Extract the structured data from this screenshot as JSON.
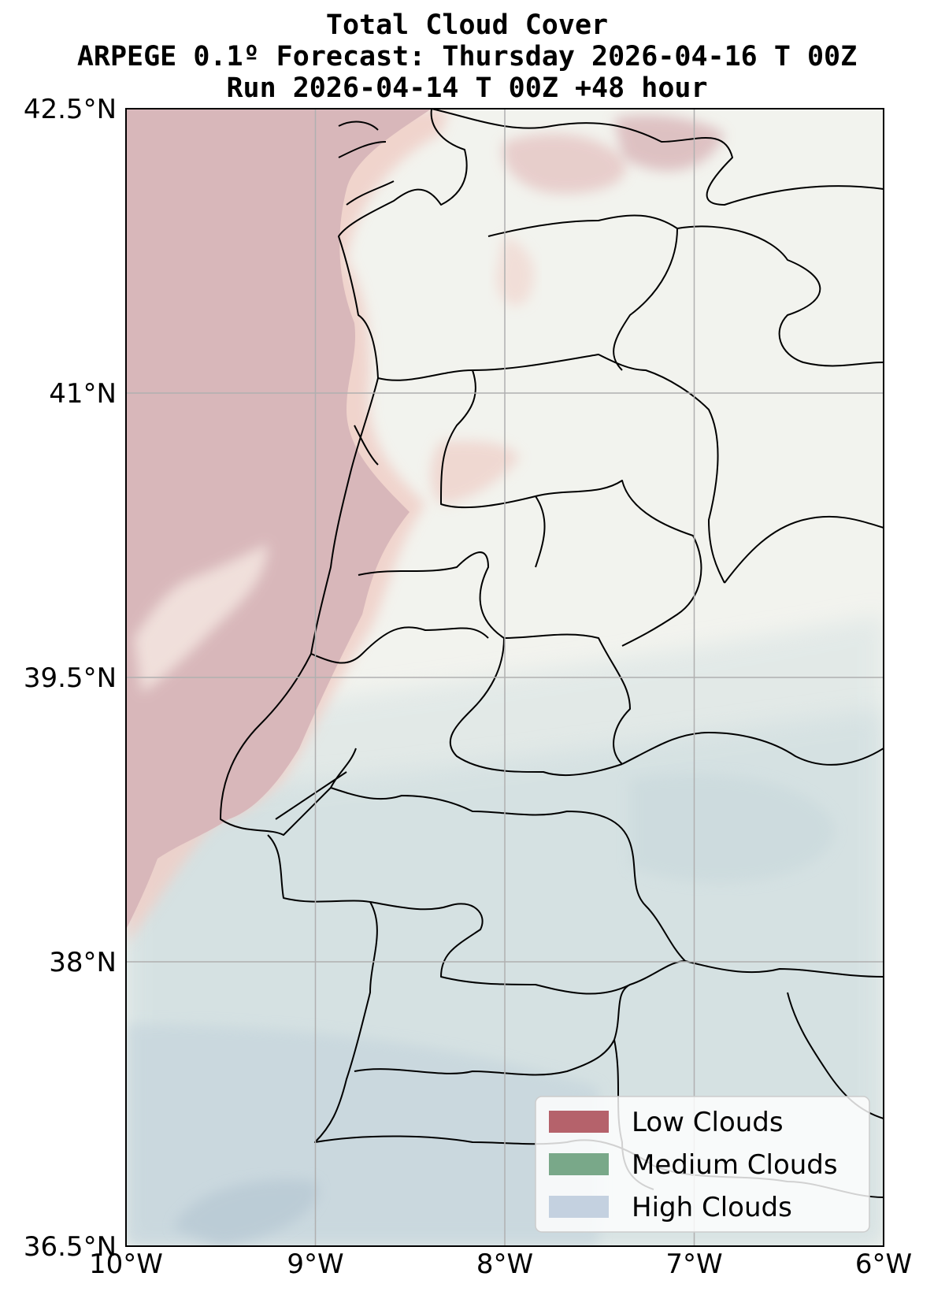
{
  "title": {
    "line1": "Total Cloud Cover",
    "line2": "ARPEGE 0.1º Forecast: Thursday 2026-04-16 T 00Z",
    "line3": "Run 2026-04-14 T 00Z +48 hour"
  },
  "map": {
    "lon_range": [
      -10,
      -6
    ],
    "lat_range": [
      36.5,
      42.5
    ],
    "gridlines": true,
    "x_ticks": [
      {
        "lon": -10,
        "label": "10°W"
      },
      {
        "lon": -9,
        "label": "9°W"
      },
      {
        "lon": -8,
        "label": "8°W"
      },
      {
        "lon": -7,
        "label": "7°W"
      },
      {
        "lon": -6,
        "label": "6°W"
      }
    ],
    "y_ticks": [
      {
        "lat": 42.5,
        "label": "42.5°N"
      },
      {
        "lat": 41,
        "label": "41°N"
      },
      {
        "lat": 39.5,
        "label": "39.5°N"
      },
      {
        "lat": 38,
        "label": "38°N"
      },
      {
        "lat": 36.5,
        "label": "36.5°N"
      }
    ],
    "colors": {
      "land_background": "#f2f3ee",
      "low_clouds": "#b5626b",
      "medium_clouds": "#79a889",
      "high_clouds": "#c4d1e0",
      "gridline": "#b0b0b0",
      "boundary": "#000000"
    }
  },
  "legend": {
    "position": "lower-right",
    "items": [
      {
        "label": "Low Clouds",
        "color": "#b5626b"
      },
      {
        "label": "Medium Clouds",
        "color": "#79a889"
      },
      {
        "label": "High Clouds",
        "color": "#c4d1e0"
      }
    ]
  }
}
